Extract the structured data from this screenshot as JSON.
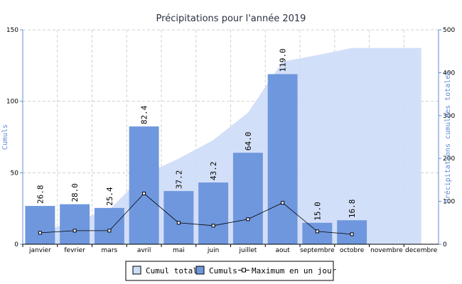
{
  "chart_data": {
    "type": "bar",
    "title": "Précipitations pour l'année 2019",
    "categories": [
      "janvier",
      "fevrier",
      "mars",
      "avril",
      "mai",
      "juin",
      "juillet",
      "aout",
      "septembre",
      "octobre",
      "novembre",
      "decembre"
    ],
    "series": [
      {
        "name": "Cumul total",
        "type": "area",
        "axis": "right",
        "color": "#cddcf7",
        "values": [
          26.8,
          54.8,
          80.2,
          162.6,
          199.8,
          243.0,
          307.0,
          426.0,
          441.0,
          457.8,
          457.8,
          457.8
        ]
      },
      {
        "name": "Cumuls",
        "type": "bar",
        "axis": "left",
        "color": "#6f97dd",
        "values": [
          26.8,
          28.0,
          25.4,
          82.4,
          37.2,
          43.2,
          64.0,
          119.0,
          15.0,
          16.8,
          null,
          null
        ],
        "labels": [
          "26.8",
          "28.0",
          "25.4",
          "82.4",
          "37.2",
          "43.2",
          "64.0",
          "119.0",
          "15.0",
          "16.8",
          "",
          ""
        ]
      },
      {
        "name": "Maximum en un jour",
        "type": "line",
        "axis": "left",
        "color": "#000000",
        "values": [
          8,
          9.5,
          9.5,
          35.5,
          15,
          13,
          17.5,
          29,
          9,
          7,
          null,
          null
        ]
      }
    ],
    "ylabel": "Cumuls",
    "y2label": "Précipitations cumulées totales",
    "ylim": [
      0,
      150
    ],
    "y2lim": [
      0,
      500
    ],
    "yticks": [
      "0",
      "50",
      "100",
      "150"
    ],
    "y2ticks": [
      "0",
      "100",
      "200",
      "300",
      "400",
      "500"
    ],
    "grid": true,
    "legend_position": "bottom-center"
  }
}
